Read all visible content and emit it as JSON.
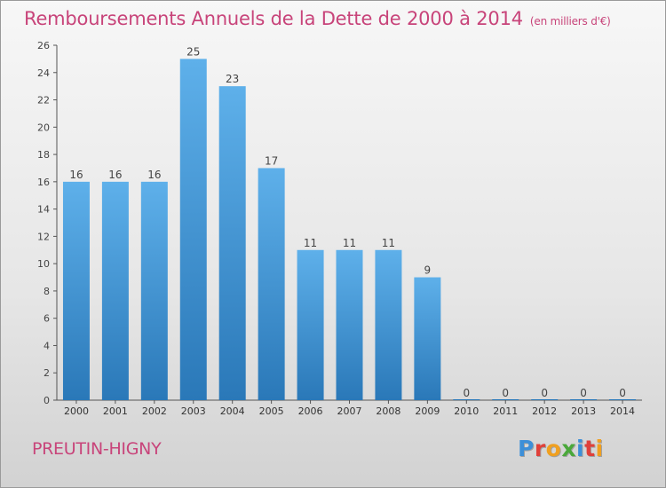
{
  "header": {
    "title": "Remboursements Annuels de la Dette de 2000 à 2014",
    "subtitle": "(en milliers d'€)"
  },
  "footer": {
    "commune": "PREUTIN-HIGNY",
    "logo_text": "Proxiti"
  },
  "colors": {
    "title": "#c8447a",
    "bar_top": "#5eb0ea",
    "bar_bottom": "#2a78b8"
  },
  "chart_data": {
    "type": "bar",
    "title": "Remboursements Annuels de la Dette de 2000 à 2014",
    "subtitle": "(en milliers d'€)",
    "xlabel": "",
    "ylabel": "",
    "categories": [
      "2000",
      "2001",
      "2002",
      "2003",
      "2004",
      "2005",
      "2006",
      "2007",
      "2008",
      "2009",
      "2010",
      "2011",
      "2012",
      "2013",
      "2014"
    ],
    "values": [
      16,
      16,
      16,
      25,
      23,
      17,
      11,
      11,
      11,
      9,
      0,
      0,
      0,
      0,
      0
    ],
    "ylim": [
      0,
      26
    ],
    "yticks": [
      0,
      2,
      4,
      6,
      8,
      10,
      12,
      14,
      16,
      18,
      20,
      22,
      24,
      26
    ],
    "grid": false,
    "legend": "none"
  }
}
